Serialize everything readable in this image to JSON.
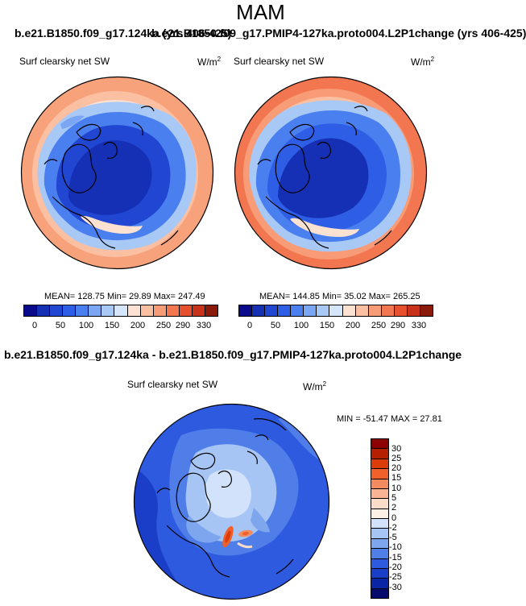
{
  "chart_data": [
    {
      "type": "heatmap",
      "projection": "north polar stereographic",
      "title": "b.e21.B1850.f09_g17.124ka (yrs 406-425)",
      "variable": "Surf clearsky net SW",
      "units": "W/m",
      "units_exponent": "2",
      "stats_text": "MEAN= 128.75  Min=  29.89  Max= 247.49",
      "mean": 128.75,
      "min": 29.89,
      "max": 247.49,
      "colorbar_ticks": [
        "0",
        "50",
        "100",
        "150",
        "200",
        "250",
        "290",
        "330"
      ]
    },
    {
      "type": "heatmap",
      "projection": "north polar stereographic",
      "title": "b.e21.B1850.f09_g17.PMIP4-127ka.proto004.L2P1change (yrs 406-425)",
      "variable": "Surf clearsky net SW",
      "units": "W/m",
      "units_exponent": "2",
      "stats_text": "MEAN= 144.85  Min=  35.02  Max= 265.25",
      "mean": 144.85,
      "min": 35.02,
      "max": 265.25,
      "colorbar_ticks": [
        "0",
        "50",
        "100",
        "150",
        "200",
        "250",
        "290",
        "330"
      ]
    },
    {
      "type": "heatmap",
      "projection": "north polar stereographic",
      "title": "b.e21.B1850.f09_g17.124ka - b.e21.B1850.f09_g17.PMIP4-127ka.proto004.L2P1change",
      "variable": "Surf clearsky net SW",
      "units": "W/m",
      "units_exponent": "2",
      "stats_text": "MIN = -51.47 MAX =  27.81",
      "min": -51.47,
      "max": 27.81,
      "colorbar_ticks": [
        "30",
        "25",
        "20",
        "15",
        "10",
        "5",
        "2",
        "0",
        "-2",
        "-5",
        "-10",
        "-15",
        "-20",
        "-25",
        "-30"
      ]
    }
  ],
  "season": "MAM",
  "top_colors": [
    "#0a0a8c",
    "#1530b4",
    "#2046d2",
    "#2f5ee6",
    "#4a7ff0",
    "#7aa6f4",
    "#a8c8f6",
    "#d6e6fa",
    "#fde2d2",
    "#fbc0a2",
    "#f89c78",
    "#f27650",
    "#e6502e",
    "#c8321a",
    "#8c1a0a"
  ],
  "diff_colors": [
    "#8c0000",
    "#b42000",
    "#dc3c0a",
    "#f0602a",
    "#f48a60",
    "#f8b494",
    "#fcdcc8",
    "#fdf0e4",
    "#d2e2fa",
    "#a6c4f4",
    "#7ea6ee",
    "#4f7ee8",
    "#2e5ae0",
    "#1a3ec8",
    "#0c24a6",
    "#060c6e"
  ],
  "diff_color_order": "top-to-bottom"
}
